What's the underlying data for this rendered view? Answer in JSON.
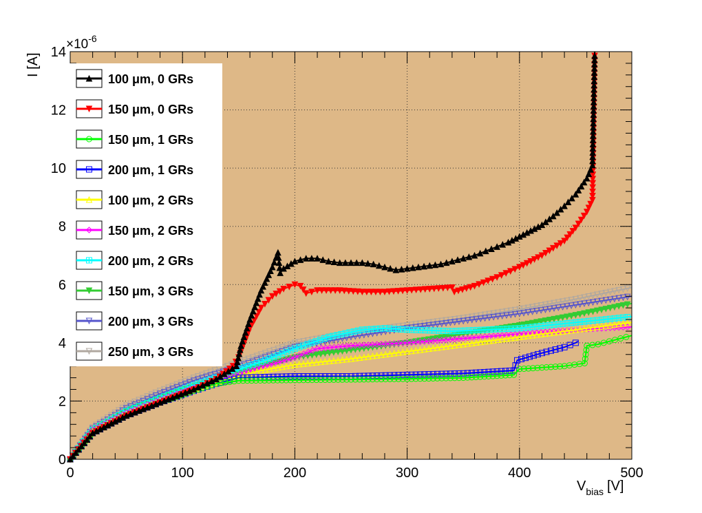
{
  "chart_data": {
    "type": "line",
    "ylabel": "I [A]",
    "xlabel_main": "V",
    "xlabel_sub": "bias",
    "xlabel_unit": "[V]",
    "y_exponent_base": "×10",
    "y_exponent_power": "-6",
    "xlim": [
      0,
      500
    ],
    "ylim": [
      0,
      14
    ],
    "x_ticks": [
      0,
      100,
      200,
      300,
      400,
      500
    ],
    "y_ticks": [
      0,
      2,
      4,
      6,
      8,
      10,
      12,
      14
    ],
    "grid": true,
    "legend_position": "top-left",
    "background": "#deb887",
    "series": [
      {
        "name": "100  μm, 0 GRs",
        "color": "#000000",
        "marker": "triangle-up-filled",
        "x": [
          0,
          20,
          50,
          80,
          110,
          130,
          148,
          152,
          160,
          170,
          180,
          185,
          187,
          190,
          200,
          210,
          220,
          230,
          240,
          250,
          260,
          270,
          280,
          290,
          300,
          310,
          320,
          330,
          340,
          350,
          360,
          370,
          380,
          390,
          400,
          410,
          420,
          430,
          440,
          450,
          460,
          465,
          467
        ],
        "y": [
          0,
          0.9,
          1.5,
          1.95,
          2.4,
          2.75,
          3.2,
          3.9,
          4.8,
          5.8,
          6.6,
          7.1,
          6.4,
          6.55,
          6.8,
          6.9,
          6.9,
          6.8,
          6.75,
          6.75,
          6.75,
          6.7,
          6.6,
          6.5,
          6.55,
          6.6,
          6.65,
          6.7,
          6.8,
          6.9,
          7.0,
          7.15,
          7.3,
          7.45,
          7.65,
          7.85,
          8.05,
          8.35,
          8.7,
          9.1,
          9.65,
          10.1,
          14.0
        ]
      },
      {
        "name": "150  μm, 0 GRs",
        "color": "#ff0000",
        "marker": "triangle-down-filled",
        "x": [
          0,
          20,
          50,
          80,
          110,
          130,
          145,
          150,
          160,
          170,
          180,
          190,
          200,
          205,
          210,
          220,
          240,
          260,
          280,
          300,
          320,
          340,
          342,
          360,
          380,
          400,
          420,
          440,
          450,
          460,
          465,
          467
        ],
        "y": [
          0,
          0.9,
          1.5,
          1.95,
          2.4,
          2.75,
          3.2,
          3.5,
          4.5,
          5.2,
          5.6,
          5.85,
          6.0,
          5.95,
          5.7,
          5.8,
          5.8,
          5.75,
          5.75,
          5.8,
          5.85,
          5.9,
          5.75,
          5.95,
          6.25,
          6.6,
          7.0,
          7.5,
          7.95,
          8.5,
          8.9,
          14.0
        ]
      },
      {
        "name": "150  μm, 1 GRs",
        "color": "#00ff00",
        "marker": "circle-open",
        "x": [
          0,
          20,
          50,
          80,
          110,
          130,
          150,
          200,
          250,
          300,
          350,
          395,
          400,
          420,
          440,
          458,
          460,
          470,
          480,
          490,
          500
        ],
        "y": [
          0,
          0.9,
          1.5,
          1.95,
          2.35,
          2.6,
          2.7,
          2.72,
          2.74,
          2.76,
          2.8,
          2.9,
          3.1,
          3.15,
          3.2,
          3.3,
          3.9,
          3.95,
          4.05,
          4.15,
          4.25
        ]
      },
      {
        "name": "200  μm, 1 GRs",
        "color": "#0000ff",
        "marker": "square-open",
        "x": [
          0,
          20,
          50,
          80,
          110,
          130,
          150,
          200,
          250,
          300,
          350,
          395,
          398,
          420,
          440,
          450,
          452
        ],
        "y": [
          0,
          0.9,
          1.5,
          1.95,
          2.35,
          2.6,
          2.8,
          2.85,
          2.85,
          2.9,
          2.95,
          3.05,
          3.4,
          3.65,
          3.85,
          4.0,
          4.05
        ]
      },
      {
        "name": "100  μm, 2 GRs",
        "color": "#ffff00",
        "marker": "triangle-up-open",
        "x": [
          0,
          20,
          50,
          80,
          110,
          140,
          170,
          200,
          250,
          300,
          350,
          400,
          450,
          500
        ],
        "y": [
          0,
          0.95,
          1.55,
          2.0,
          2.4,
          2.75,
          3.05,
          3.25,
          3.45,
          3.7,
          3.95,
          4.2,
          4.45,
          4.7
        ]
      },
      {
        "name": "150  μm, 2 GRs",
        "color": "#ff00ff",
        "marker": "diamond-open",
        "x": [
          0,
          20,
          50,
          80,
          110,
          140,
          170,
          200,
          220,
          250,
          300,
          350,
          400,
          450,
          500
        ],
        "y": [
          0,
          1.0,
          1.6,
          2.05,
          2.45,
          2.8,
          3.15,
          3.5,
          3.8,
          3.9,
          4.0,
          4.15,
          4.3,
          4.45,
          4.55
        ]
      },
      {
        "name": "200  μm, 2 GRs",
        "color": "#00ffff",
        "marker": "cross-open",
        "x": [
          0,
          20,
          50,
          80,
          110,
          140,
          170,
          200,
          230,
          260,
          280,
          300,
          340,
          400,
          450,
          500
        ],
        "y": [
          0,
          1.0,
          1.65,
          2.1,
          2.55,
          2.95,
          3.35,
          3.8,
          4.2,
          4.45,
          4.5,
          4.45,
          4.4,
          4.5,
          4.7,
          4.9
        ]
      },
      {
        "name": "150  μm, 3 GRs",
        "color": "#33cc33",
        "marker": "triangle-down-filled",
        "x": [
          0,
          20,
          50,
          80,
          110,
          140,
          170,
          200,
          250,
          300,
          350,
          400,
          450,
          500
        ],
        "y": [
          0,
          1.0,
          1.65,
          2.1,
          2.5,
          2.85,
          3.2,
          3.5,
          3.75,
          4.0,
          4.3,
          4.6,
          4.95,
          5.35
        ]
      },
      {
        "name": "200  μm, 3 GRs",
        "color": "#5555cc",
        "marker": "triangle-down-open",
        "x": [
          0,
          20,
          50,
          80,
          110,
          140,
          170,
          200,
          250,
          300,
          350,
          400,
          450,
          500
        ],
        "y": [
          0,
          1.05,
          1.75,
          2.25,
          2.7,
          3.05,
          3.45,
          3.85,
          4.2,
          4.5,
          4.75,
          5.0,
          5.3,
          5.6
        ]
      },
      {
        "name": "250  μm, 3 GRs",
        "color": "#b0a8a0",
        "marker": "triangle-down-open",
        "x": [
          0,
          20,
          50,
          80,
          110,
          140,
          170,
          200,
          250,
          300,
          350,
          400,
          450,
          500
        ],
        "y": [
          0,
          1.1,
          1.85,
          2.35,
          2.8,
          3.2,
          3.6,
          4.0,
          4.35,
          4.6,
          4.85,
          5.15,
          5.5,
          5.9
        ]
      }
    ]
  }
}
